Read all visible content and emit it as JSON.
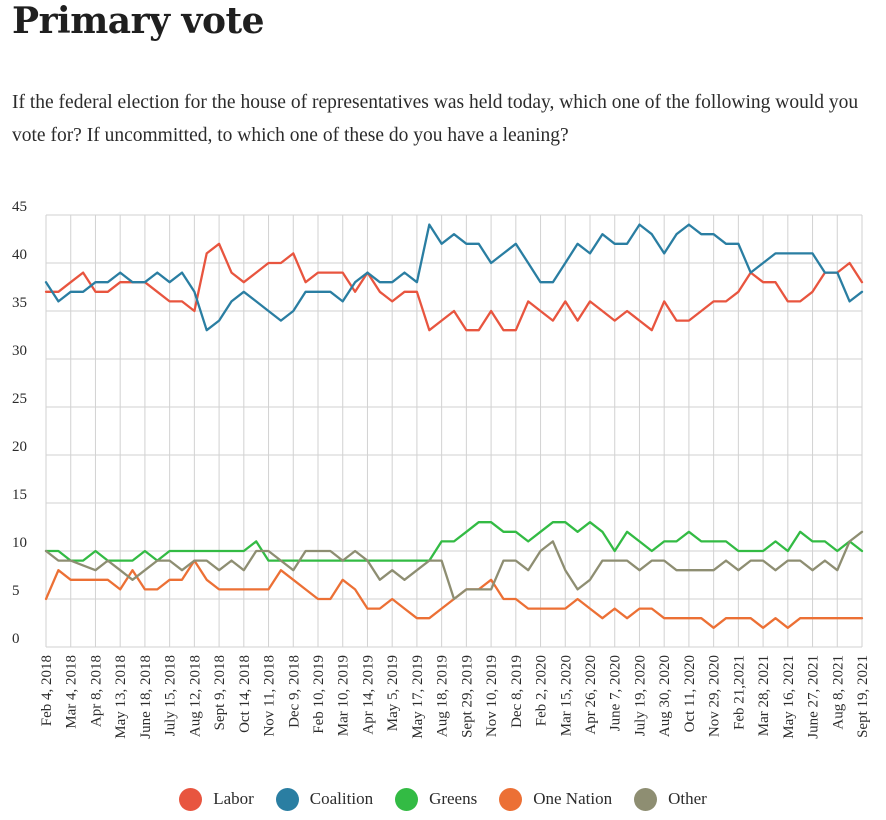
{
  "title": "Primary vote",
  "subtitle": "If the federal election for the house of representatives was held today, which one of the following would you vote for? If uncommitted, to which one of these do you have a leaning?",
  "chart_data": {
    "type": "line",
    "title": "Primary vote",
    "xlabel": "",
    "ylabel": "",
    "ylim": [
      0,
      45
    ],
    "yticks": [
      0,
      5,
      10,
      15,
      20,
      25,
      30,
      35,
      40,
      45
    ],
    "grid": true,
    "legend": "bottom-center",
    "xtick_labels": [
      "Feb 4, 2018",
      "Mar 4, 2018",
      "Apr 8, 2018",
      "May 13, 2018",
      "June 18, 2018",
      "July 15, 2018",
      "Aug 12, 2018",
      "Sept 9, 2018",
      "Oct 14, 2018",
      "Nov 11, 2018",
      "Dec 9, 2018",
      "Feb 10, 2019",
      "Mar 10, 2019",
      "Apr 14, 2019",
      "May 5, 2019",
      "May 17, 2019",
      "Aug 18, 2019",
      "Sept 29, 2019",
      "Nov 10, 2019",
      "Dec 8, 2019",
      "Feb 2, 2020",
      "Mar 15, 2020",
      "Apr 26, 2020",
      "June 7, 2020",
      "July 19, 2020",
      "Aug 30, 2020",
      "Oct 11, 2020",
      "Nov 29, 2020",
      "Feb 21,2021",
      "Mar 28, 2021",
      "May 16, 2021",
      "June 27, 2021",
      "Aug 8, 2021",
      "Sept 19, 2021"
    ],
    "n_points": 67,
    "series": [
      {
        "name": "Labor",
        "color": "#e8553f",
        "values": [
          37,
          37,
          38,
          39,
          37,
          37,
          38,
          38,
          38,
          37,
          36,
          36,
          35,
          41,
          42,
          39,
          38,
          39,
          40,
          40,
          41,
          38,
          39,
          39,
          39,
          37,
          39,
          37,
          36,
          37,
          37,
          33,
          34,
          35,
          33,
          33,
          35,
          33,
          33,
          36,
          35,
          34,
          36,
          34,
          36,
          35,
          34,
          35,
          34,
          33,
          36,
          34,
          34,
          35,
          36,
          36,
          37,
          39,
          38,
          38,
          36,
          36,
          37,
          39,
          39,
          40,
          38
        ]
      },
      {
        "name": "Coalition",
        "color": "#2a7ea2",
        "values": [
          38,
          36,
          37,
          37,
          38,
          38,
          39,
          38,
          38,
          39,
          38,
          39,
          37,
          33,
          34,
          36,
          37,
          36,
          35,
          34,
          35,
          37,
          37,
          37,
          36,
          38,
          39,
          38,
          38,
          39,
          38,
          44,
          42,
          43,
          42,
          42,
          40,
          41,
          42,
          40,
          38,
          38,
          40,
          42,
          41,
          43,
          42,
          42,
          44,
          43,
          41,
          43,
          44,
          43,
          43,
          42,
          42,
          39,
          40,
          41,
          41,
          41,
          41,
          39,
          39,
          36,
          37
        ]
      },
      {
        "name": "Greens",
        "color": "#33bb44",
        "values": [
          10,
          10,
          9,
          9,
          10,
          9,
          9,
          9,
          10,
          9,
          10,
          10,
          10,
          10,
          10,
          10,
          10,
          11,
          9,
          9,
          9,
          9,
          9,
          9,
          9,
          9,
          9,
          9,
          9,
          9,
          9,
          9,
          11,
          11,
          12,
          13,
          13,
          12,
          12,
          11,
          12,
          13,
          13,
          12,
          13,
          12,
          10,
          12,
          11,
          10,
          11,
          11,
          12,
          11,
          11,
          11,
          10,
          10,
          10,
          11,
          10,
          12,
          11,
          11,
          10,
          11,
          10
        ]
      },
      {
        "name": "One Nation",
        "color": "#ec7035",
        "values": [
          5,
          8,
          7,
          7,
          7,
          7,
          6,
          8,
          6,
          6,
          7,
          7,
          9,
          7,
          6,
          6,
          6,
          6,
          6,
          8,
          7,
          6,
          5,
          5,
          7,
          6,
          4,
          4,
          5,
          4,
          3,
          3,
          4,
          5,
          6,
          6,
          7,
          5,
          5,
          4,
          4,
          4,
          4,
          5,
          4,
          3,
          4,
          3,
          4,
          4,
          3,
          3,
          3,
          3,
          2,
          3,
          3,
          3,
          2,
          3,
          2,
          3,
          3,
          3,
          3,
          3,
          3
        ]
      },
      {
        "name": "Other",
        "color": "#8e8e72",
        "values": [
          10,
          9,
          9,
          8.5,
          8,
          9,
          8,
          7,
          8,
          9,
          9,
          8,
          9,
          9,
          8,
          9,
          8,
          10,
          10,
          9,
          8,
          10,
          10,
          10,
          9,
          10,
          9,
          7,
          8,
          7,
          8,
          9,
          9,
          5,
          6,
          6,
          6,
          9,
          9,
          8,
          10,
          11,
          8,
          6,
          7,
          9,
          9,
          9,
          8,
          9,
          9,
          8,
          8,
          8,
          8,
          9,
          8,
          9,
          9,
          8,
          9,
          9,
          8,
          9,
          8,
          11,
          12
        ]
      }
    ]
  }
}
